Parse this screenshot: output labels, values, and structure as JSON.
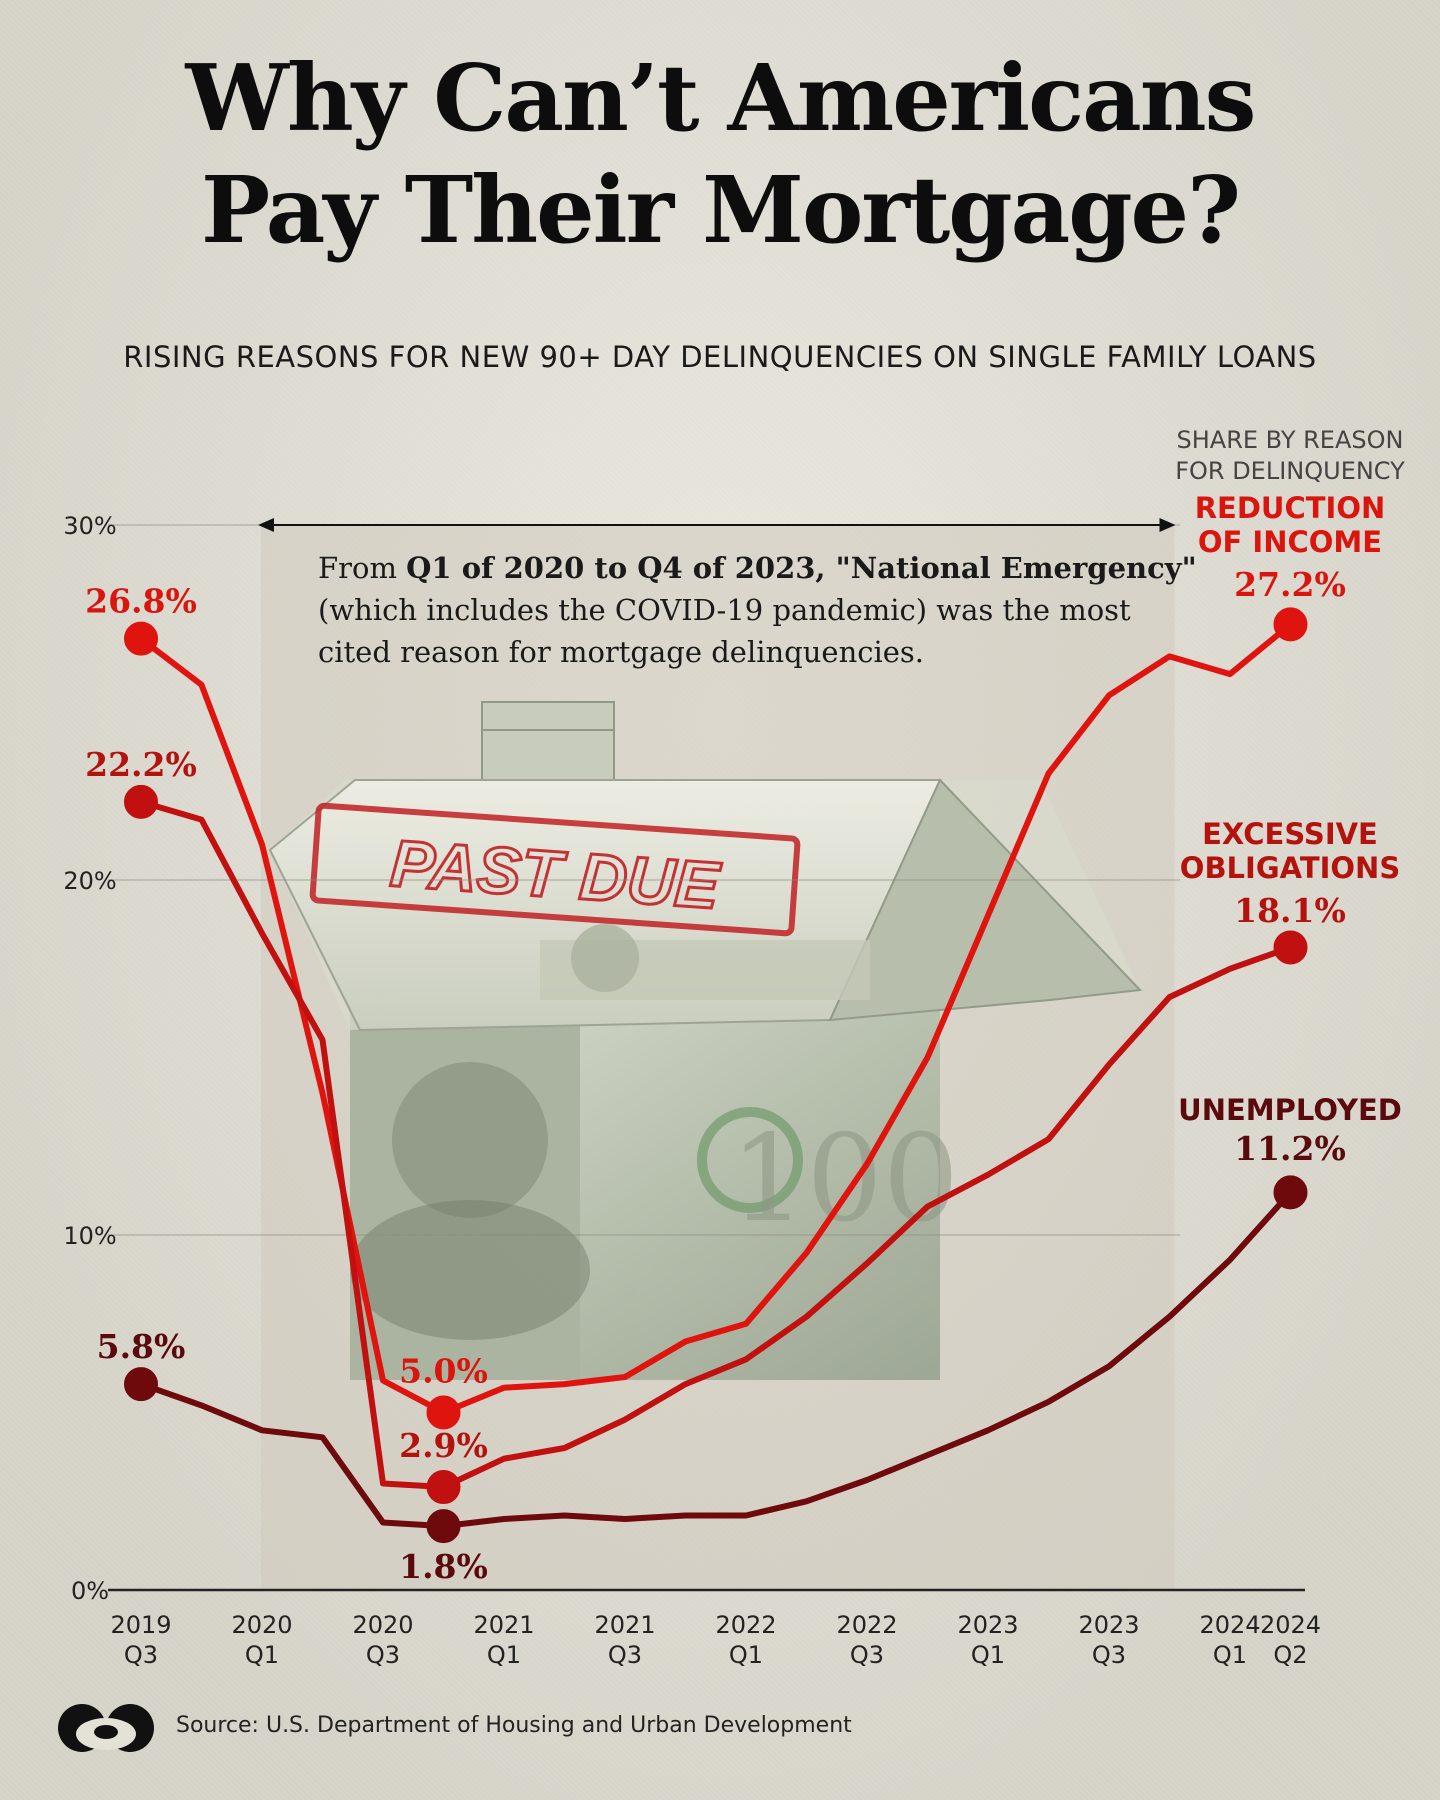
{
  "title_line1": "Why Can’t Americans",
  "title_line2": "Pay Their Mortgage?",
  "subtitle": "RISING REASONS FOR NEW 90+ DAY DELINQUENCIES ON SINGLE FAMILY LOANS",
  "legend_heading_line1": "SHARE BY REASON",
  "legend_heading_line2": "FOR DELINQUENCY",
  "annotation": {
    "line1_plain": "From ",
    "line1_bold": "Q1 of 2020 to Q4 of 2023, \"National Emergency\"",
    "line2": "(which includes the COVID-19 pandemic) was the most",
    "line3": "cited reason for mortgage delinquencies."
  },
  "image_text": "PAST DUE",
  "source": "Source: U.S. Department of Housing and Urban Development",
  "chart_data": {
    "type": "line",
    "title": "Why Can’t Americans Pay Their Mortgage?",
    "subtitle": "RISING REASONS FOR NEW 90+ DAY DELINQUENCIES ON SINGLE FAMILY LOANS",
    "ylim": [
      0,
      30
    ],
    "yticks": [
      "0%",
      "10%",
      "20%",
      "30%"
    ],
    "ytick_values": [
      0,
      10,
      20,
      30
    ],
    "grid": true,
    "x_labels": [
      {
        "year": "2019",
        "q": "Q3",
        "x": 0
      },
      {
        "year": "2020",
        "q": "Q1",
        "x": 2
      },
      {
        "year": "2020",
        "q": "Q3",
        "x": 4
      },
      {
        "year": "2021",
        "q": "Q1",
        "x": 6
      },
      {
        "year": "2021",
        "q": "Q3",
        "x": 8
      },
      {
        "year": "2022",
        "q": "Q1",
        "x": 10
      },
      {
        "year": "2022",
        "q": "Q3",
        "x": 12
      },
      {
        "year": "2023",
        "q": "Q1",
        "x": 14
      },
      {
        "year": "2023",
        "q": "Q3",
        "x": 16
      },
      {
        "year": "2024",
        "q": "Q1",
        "x": 18
      },
      {
        "year": "2024",
        "q": "Q2",
        "x": 19
      }
    ],
    "highlight_range": [
      2,
      17
    ],
    "series": [
      {
        "name_line1": "REDUCTION",
        "name_line2": "OF INCOME",
        "color": "#e0140f",
        "label_color": "#d9150e",
        "x": [
          0,
          1,
          2,
          3,
          4,
          5,
          6,
          7,
          8,
          9,
          10,
          11,
          12,
          13,
          14,
          15,
          16,
          17,
          18,
          19
        ],
        "values": [
          26.8,
          25.5,
          21.0,
          14.0,
          5.9,
          5.0,
          5.7,
          5.8,
          6.0,
          7.0,
          7.5,
          9.5,
          12.0,
          15.0,
          19.0,
          23.0,
          25.2,
          26.3,
          25.8,
          27.2
        ],
        "start_label": "26.8%",
        "mid_label": "5.0%",
        "mid_index": 5,
        "end_label": "27.2%"
      },
      {
        "name_line1": "EXCESSIVE",
        "name_line2": "OBLIGATIONS",
        "color": "#c0100f",
        "label_color": "#b3120d",
        "x": [
          0,
          1,
          2,
          3,
          4,
          5,
          6,
          7,
          8,
          9,
          10,
          11,
          12,
          13,
          14,
          15,
          16,
          17,
          18,
          19
        ],
        "values": [
          22.2,
          21.7,
          18.5,
          15.5,
          3.0,
          2.9,
          3.7,
          4.0,
          4.8,
          5.8,
          6.5,
          7.7,
          9.2,
          10.8,
          11.7,
          12.7,
          14.8,
          16.7,
          17.5,
          18.1
        ],
        "start_label": "22.2%",
        "mid_label": "2.9%",
        "mid_index": 5,
        "end_label": "18.1%"
      },
      {
        "name_line1": "UNEMPLOYED",
        "name_line2": "",
        "color": "#6e0a0c",
        "label_color": "#5a0a0c",
        "x": [
          0,
          1,
          2,
          3,
          4,
          5,
          6,
          7,
          8,
          9,
          10,
          11,
          12,
          13,
          14,
          15,
          16,
          17,
          18,
          19
        ],
        "values": [
          5.8,
          5.2,
          4.5,
          4.3,
          1.9,
          1.8,
          2.0,
          2.1,
          2.0,
          2.1,
          2.1,
          2.5,
          3.1,
          3.8,
          4.5,
          5.3,
          6.3,
          7.7,
          9.3,
          11.2
        ],
        "start_label": "5.8%",
        "mid_label": "1.8%",
        "mid_index": 5,
        "end_label": "11.2%"
      }
    ]
  }
}
